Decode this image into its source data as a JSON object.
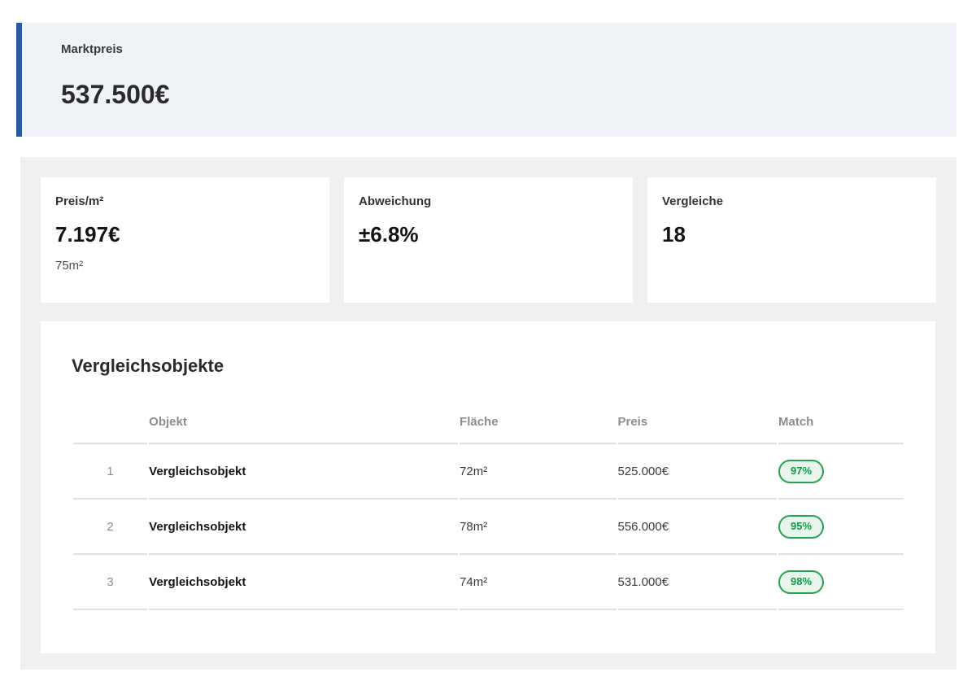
{
  "hero": {
    "label": "Marktpreis",
    "value": "537.500€"
  },
  "stats": [
    {
      "label": "Preis/m²",
      "value": "7.197€",
      "sub": "75m²"
    },
    {
      "label": "Abweichung",
      "value": "±6.8%",
      "sub": ""
    },
    {
      "label": "Vergleiche",
      "value": "18",
      "sub": ""
    }
  ],
  "comparables": {
    "title": "Vergleichsobjekte",
    "columns": {
      "index": "",
      "objekt": "Objekt",
      "flaeche": "Fläche",
      "preis": "Preis",
      "match": "Match"
    },
    "rows": [
      {
        "index": "1",
        "objekt": "Vergleichsobjekt",
        "flaeche": "72m²",
        "preis": "525.000€",
        "match": "97%"
      },
      {
        "index": "2",
        "objekt": "Vergleichsobjekt",
        "flaeche": "78m²",
        "preis": "556.000€",
        "match": "95%"
      },
      {
        "index": "3",
        "objekt": "Vergleichsobjekt",
        "flaeche": "74m²",
        "preis": "531.000€",
        "match": "98%"
      }
    ]
  },
  "colors": {
    "accent_blue": "#275b9d",
    "hero_bg": "#eff3f8",
    "section_bg": "#f0f0f0",
    "divider": "#e0e0e0",
    "badge_text": "#149a45",
    "badge_border": "#2aa150",
    "badge_bg": "#e8f5ec"
  }
}
